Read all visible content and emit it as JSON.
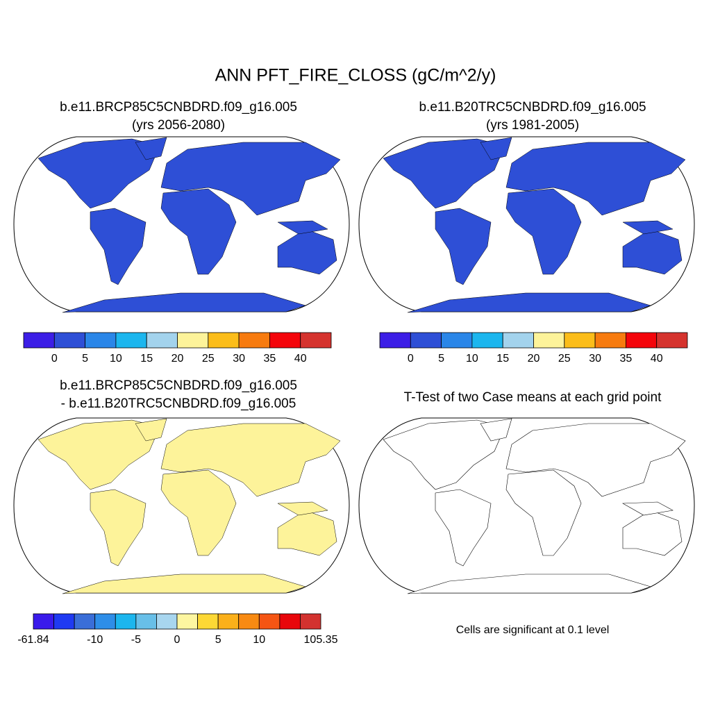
{
  "title": "ANN PFT_FIRE_CLOSS (gC/m^2/y)",
  "panels": [
    {
      "lines": [
        "b.e11.BRCP85C5CNBDRD.f09_g16.005",
        "(yrs 2056-2080)"
      ]
    },
    {
      "lines": [
        "b.e11.B20TRC5CNBDRD.f09_g16.005",
        "(yrs 1981-2005)"
      ]
    },
    {
      "lines": [
        "b.e11.BRCP85C5CNBDRD.f09_g16.005",
        "- b.e11.B20TRC5CNBDRD.f09_g16.005"
      ]
    },
    {
      "lines": [
        "T-Test of two Case means at each grid point"
      ],
      "note": "Cells are significant at 0.1 level"
    }
  ],
  "colorbars": [
    {
      "colors": [
        "#3c1ee6",
        "#2e4fd6",
        "#2a86e8",
        "#1cb6ee",
        "#a3d3ed",
        "#fdf39a",
        "#fbbd1a",
        "#f77b0f",
        "#f4050b",
        "#d5332e"
      ],
      "boundaries": [
        null,
        0,
        5,
        10,
        15,
        20,
        25,
        30,
        35,
        40,
        null
      ]
    },
    {
      "colors": [
        "#3c1ee6",
        "#2e4fd6",
        "#2a86e8",
        "#1cb6ee",
        "#a3d3ed",
        "#fdf39a",
        "#fbbd1a",
        "#f77b0f",
        "#f4050b",
        "#d5332e"
      ],
      "boundaries": [
        null,
        0,
        5,
        10,
        15,
        20,
        25,
        30,
        35,
        40,
        null
      ]
    },
    {
      "colors": [
        "#3a1aeb",
        "#1f3af2",
        "#3a6ed8",
        "#2e8ee8",
        "#1cb6ee",
        "#68bfe8",
        "#a8d6ef",
        "#fdf6a0",
        "#fdd835",
        "#fbb01a",
        "#f88a12",
        "#f55513",
        "#e8060b",
        "#d3322f"
      ],
      "boundaries": [
        -61.84,
        null,
        null,
        -10,
        null,
        -5,
        null,
        0,
        null,
        5,
        null,
        10,
        null,
        null,
        105.35
      ]
    }
  ]
}
